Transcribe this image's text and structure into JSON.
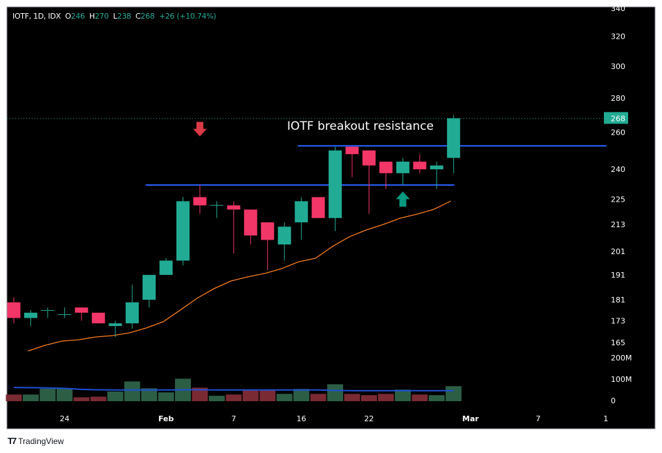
{
  "legend": {
    "symbol": "IOTF, 1D, IDX",
    "o_label": "O",
    "o": "246",
    "h_label": "H",
    "h": "270",
    "l_label": "L",
    "l": "238",
    "c_label": "C",
    "c": "268",
    "change": "+26 (+10.74%)"
  },
  "annotation": "IOTF breakout resistance",
  "brand": "TradingView",
  "colors": {
    "up": "#22ab94",
    "down": "#f23668",
    "vol_up": "#2c5e45",
    "vol_down": "#7a2a33",
    "ma": "#f57c20",
    "level": "#2962ff",
    "vol_ma": "#1e4fd8",
    "arrow_down": "#d93a45",
    "arrow_up": "#089981"
  },
  "chart_data": {
    "type": "candlestick",
    "title": "IOTF, 1D, IDX",
    "price_scale": "log",
    "ylim": [
      160,
      345
    ],
    "y_ticks": [
      "340",
      "320",
      "300",
      "280",
      "260",
      "240",
      "225",
      "213",
      "201",
      "191",
      "181",
      "173",
      "165"
    ],
    "last_price": "268",
    "volume_ticks": [
      "200M",
      "100M",
      "0"
    ],
    "x_ticks": [
      {
        "label": "24",
        "bar": 3
      },
      {
        "label": "Feb",
        "bar": 9
      },
      {
        "label": "7",
        "bar": 13
      },
      {
        "label": "16",
        "bar": 17
      },
      {
        "label": "22",
        "bar": 21
      },
      {
        "label": "Mar",
        "bar": 27
      },
      {
        "label": "7",
        "bar": 31
      },
      {
        "label": "1",
        "bar": 35
      }
    ],
    "candles": [
      {
        "o": 180,
        "h": 182,
        "l": 172,
        "c": 174
      },
      {
        "o": 174,
        "h": 177,
        "l": 171,
        "c": 176
      },
      {
        "o": 176.8,
        "h": 178,
        "l": 174,
        "c": 177
      },
      {
        "o": 175.2,
        "h": 178,
        "l": 174,
        "c": 175.4
      },
      {
        "o": 178,
        "h": 178,
        "l": 173,
        "c": 176
      },
      {
        "o": 176,
        "h": 176,
        "l": 172,
        "c": 172
      },
      {
        "o": 171,
        "h": 173,
        "l": 167,
        "c": 172
      },
      {
        "o": 172,
        "h": 187,
        "l": 170,
        "c": 180
      },
      {
        "o": 181,
        "h": 191,
        "l": 178,
        "c": 191
      },
      {
        "o": 191,
        "h": 198,
        "l": 191,
        "c": 197
      },
      {
        "o": 197,
        "h": 226,
        "l": 195,
        "c": 224
      },
      {
        "o": 226,
        "h": 232,
        "l": 218,
        "c": 222
      },
      {
        "o": 222,
        "h": 224,
        "l": 216,
        "c": 222.2
      },
      {
        "o": 222,
        "h": 224,
        "l": 200,
        "c": 220
      },
      {
        "o": 220,
        "h": 220,
        "l": 204,
        "c": 208
      },
      {
        "o": 214,
        "h": 214,
        "l": 193,
        "c": 206
      },
      {
        "o": 204,
        "h": 214,
        "l": 197,
        "c": 212
      },
      {
        "o": 214,
        "h": 226,
        "l": 206,
        "c": 224
      },
      {
        "o": 226,
        "h": 226,
        "l": 216,
        "c": 216
      },
      {
        "o": 216,
        "h": 252,
        "l": 210,
        "c": 250
      },
      {
        "o": 252,
        "h": 252,
        "l": 236,
        "c": 248
      },
      {
        "o": 250,
        "h": 250,
        "l": 218,
        "c": 242
      },
      {
        "o": 244,
        "h": 244,
        "l": 230,
        "c": 238
      },
      {
        "o": 238,
        "h": 246,
        "l": 232,
        "c": 244
      },
      {
        "o": 244,
        "h": 248,
        "l": 238,
        "c": 240
      },
      {
        "o": 240,
        "h": 244,
        "l": 230,
        "c": 242
      },
      {
        "o": 246,
        "h": 270,
        "l": 238,
        "c": 268
      }
    ],
    "volume_millions": [
      28,
      28,
      55,
      55,
      15,
      18,
      42,
      89,
      57,
      38,
      102,
      60,
      22,
      28,
      48,
      48,
      31,
      54,
      31,
      76,
      31,
      25,
      31,
      51,
      28,
      25,
      67
    ],
    "volume_ma_millions": [
      61,
      60,
      59,
      57,
      52,
      50,
      49,
      49,
      49,
      49,
      50,
      50,
      49,
      49,
      49,
      49,
      49,
      49,
      49,
      47,
      46,
      46,
      46,
      46,
      46,
      46,
      46
    ],
    "ma_series": {
      "start_bar": 1,
      "values": [
        162,
        164,
        165.5,
        166,
        167,
        167.5,
        168.5,
        170.3,
        172.6,
        177,
        181.6,
        185.4,
        188.5,
        190.2,
        191.6,
        193.6,
        196.5,
        198,
        203.1,
        207.4,
        210.5,
        213,
        215.9,
        217.8,
        220.1,
        224.1
      ]
    },
    "levels": [
      {
        "name": "resistance-upper",
        "price": 252.5,
        "from_bar": 17,
        "to_bar": 35
      },
      {
        "name": "resistance-lower",
        "price": 232,
        "from_bar": 8,
        "to_bar": 26
      }
    ],
    "markers": [
      {
        "type": "arrow-down",
        "bar": 11,
        "price": 262
      },
      {
        "type": "arrow-up",
        "bar": 23,
        "price": 225
      }
    ]
  }
}
